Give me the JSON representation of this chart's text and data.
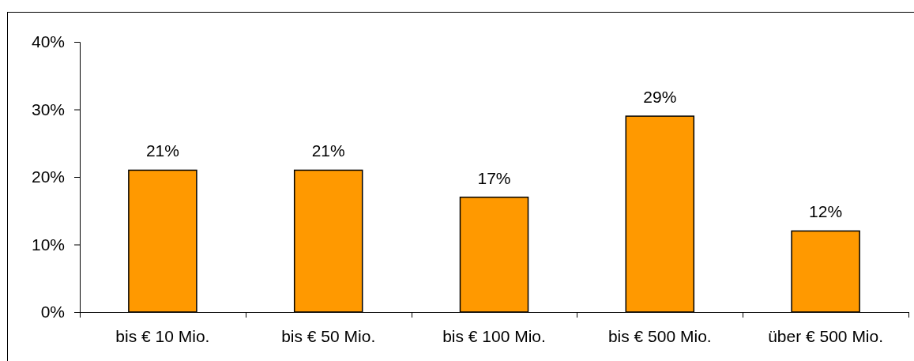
{
  "chart_data": {
    "type": "bar",
    "categories": [
      "bis € 10 Mio.",
      "bis € 50 Mio.",
      "bis € 100 Mio.",
      "bis € 500 Mio.",
      "über € 500 Mio."
    ],
    "values": [
      21,
      21,
      17,
      29,
      12
    ],
    "color": "#ff9900",
    "value_labels": [
      "21%",
      "21%",
      "17%",
      "29%",
      "12%"
    ],
    "ylim": [
      0,
      40
    ],
    "yticks": [
      {
        "value": 0,
        "label": "0%"
      },
      {
        "value": 10,
        "label": "10%"
      },
      {
        "value": 20,
        "label": "20%"
      },
      {
        "value": 30,
        "label": "30%"
      },
      {
        "value": 40,
        "label": "40%"
      }
    ]
  }
}
